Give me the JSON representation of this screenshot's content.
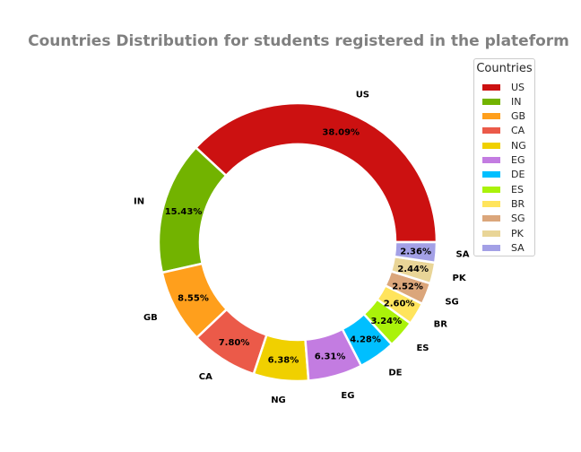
{
  "chart_data": {
    "type": "pie",
    "style": "donut",
    "title": "Countries Distribution for students registered in the plateform",
    "legend_title": "Countries",
    "legend_position": "top-right",
    "slices": [
      {
        "label": "US",
        "value": 38.09,
        "pct_text": "38.09%",
        "color": "#cc1111"
      },
      {
        "label": "IN",
        "value": 15.43,
        "pct_text": "15.43%",
        "color": "#72b300"
      },
      {
        "label": "GB",
        "value": 8.55,
        "pct_text": "8.55%",
        "color": "#ff9f1c"
      },
      {
        "label": "CA",
        "value": 7.8,
        "pct_text": "7.80%",
        "color": "#eb5a49"
      },
      {
        "label": "NG",
        "value": 6.38,
        "pct_text": "6.38%",
        "color": "#f0d000"
      },
      {
        "label": "EG",
        "value": 6.31,
        "pct_text": "6.31%",
        "color": "#c37ce1"
      },
      {
        "label": "DE",
        "value": 4.28,
        "pct_text": "4.28%",
        "color": "#00bfff"
      },
      {
        "label": "ES",
        "value": 3.24,
        "pct_text": "3.24%",
        "color": "#aaf20a"
      },
      {
        "label": "BR",
        "value": 2.6,
        "pct_text": "2.60%",
        "color": "#ffe45c"
      },
      {
        "label": "SG",
        "value": 2.52,
        "pct_text": "2.52%",
        "color": "#dba67b"
      },
      {
        "label": "PK",
        "value": 2.44,
        "pct_text": "2.44%",
        "color": "#e9d597"
      },
      {
        "label": "SA",
        "value": 2.36,
        "pct_text": "2.36%",
        "color": "#a3a0e6"
      }
    ]
  }
}
